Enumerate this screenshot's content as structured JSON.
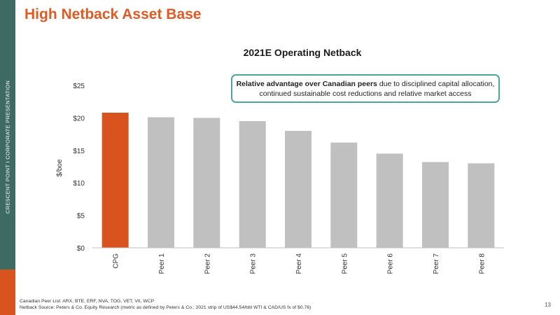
{
  "sidebar": {
    "text": "CRESCENT POINT  I  CORPORATE PRESENTATION"
  },
  "slide_title": "High Netback Asset Base",
  "callout": {
    "bold": "Relative advantage over Canadian peers",
    "rest": " due to disciplined capital allocation, continued sustainable cost reductions and relative market access"
  },
  "footnotes": {
    "peer_list": "Canadian Peer List: ARX, BTE, ERF, NVA, TOG, VET, VII, WCP",
    "source": "Netback Source: Peters & Co. Equity Research (metric as defined by Peters & Co.; 2021 strip of US$44.54/bbl WTI & CAD/US fx of $0.76)"
  },
  "page_number": "13",
  "colors": {
    "highlight": "#d9531e",
    "peer": "#c0c0c0",
    "accent": "#4aa79d",
    "title": "#e05a23",
    "sidebar": "#3d6b63"
  },
  "chart_data": {
    "type": "bar",
    "title": "2021E Operating Netback",
    "ylabel": "$/boe",
    "xlabel": "",
    "categories": [
      "CPG",
      "Peer 1",
      "Peer 2",
      "Peer 3",
      "Peer 4",
      "Peer 5",
      "Peer 6",
      "Peer 7",
      "Peer 8"
    ],
    "values": [
      20.8,
      20.1,
      20.0,
      19.5,
      18.0,
      16.2,
      14.5,
      13.2,
      13.0
    ],
    "highlight": "CPG",
    "ylim": [
      0,
      25
    ],
    "yticks": [
      0,
      5,
      10,
      15,
      20,
      25
    ],
    "ytick_labels": [
      "$0",
      "$5",
      "$10",
      "$15",
      "$20",
      "$25"
    ],
    "grid": false,
    "legend": "none"
  }
}
